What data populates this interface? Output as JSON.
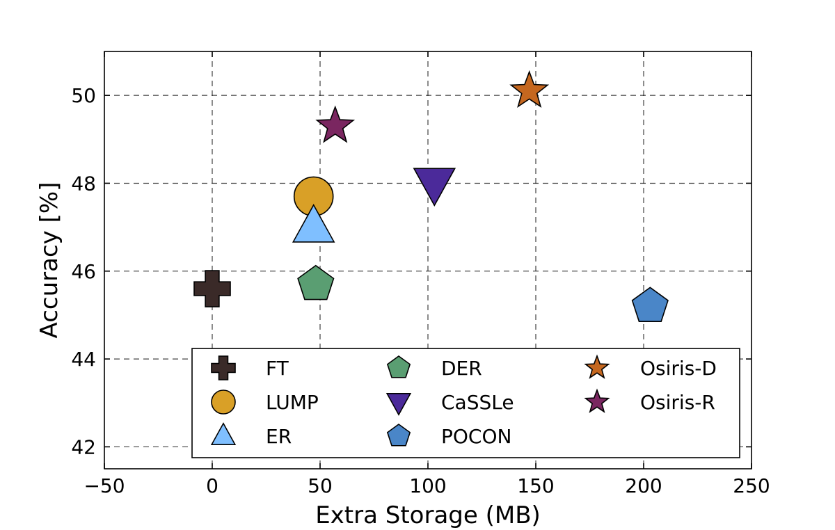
{
  "chart_data": {
    "type": "scatter",
    "xlabel": "Extra Storage (MB)",
    "ylabel": "Accuracy [%]",
    "xlim": [
      -50,
      250
    ],
    "ylim": [
      41.5,
      51
    ],
    "xticks": [
      -50,
      0,
      50,
      100,
      150,
      200,
      250
    ],
    "xtick_labels": [
      "−50",
      "0",
      "50",
      "100",
      "150",
      "200",
      "250"
    ],
    "yticks": [
      42,
      44,
      46,
      48,
      50
    ],
    "ytick_labels": [
      "42",
      "44",
      "46",
      "48",
      "50"
    ],
    "grid": true,
    "legend_placement": "bottom-center",
    "series": [
      {
        "name": "FT",
        "marker": "plus",
        "color": "#3a2a28",
        "x": 0,
        "y": 45.6
      },
      {
        "name": "LUMP",
        "marker": "circle",
        "color": "#d9a027",
        "x": 47,
        "y": 47.7
      },
      {
        "name": "ER",
        "marker": "triangle-up",
        "color": "#7fbfff",
        "x": 47,
        "y": 47.0
      },
      {
        "name": "DER",
        "marker": "pentagon",
        "color": "#5a9e72",
        "x": 48,
        "y": 45.7
      },
      {
        "name": "CaSSLe",
        "marker": "triangle-down",
        "color": "#4b2a9a",
        "x": 103,
        "y": 48.0
      },
      {
        "name": "POCON",
        "marker": "pentagon",
        "color": "#4a86c8",
        "x": 203,
        "y": 45.2
      },
      {
        "name": "Osiris-D",
        "marker": "star",
        "color": "#c5671f",
        "x": 147,
        "y": 50.1
      },
      {
        "name": "Osiris-R",
        "marker": "star",
        "color": "#7a2660",
        "x": 57,
        "y": 49.3
      }
    ]
  }
}
